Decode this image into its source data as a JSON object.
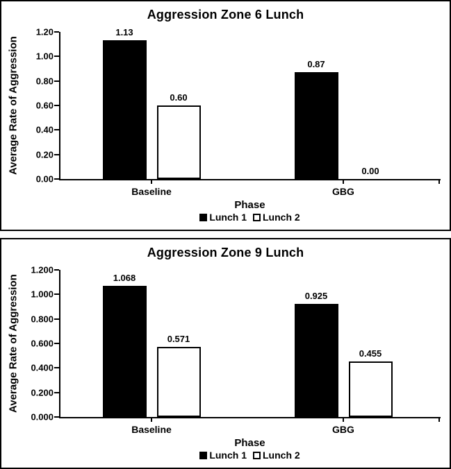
{
  "page": {
    "background": "#ffffff",
    "panel_border_color": "#000000",
    "series_colors": {
      "lunch1_fill": "#000000",
      "lunch2_fill": "#ffffff",
      "outline": "#000000"
    }
  },
  "chart_data": [
    {
      "type": "bar",
      "title": "Aggression Zone 6 Lunch",
      "xlabel": "Phase",
      "ylabel": "Average Rate of Aggression",
      "categories": [
        "Baseline",
        "GBG"
      ],
      "series": [
        {
          "name": "Lunch 1",
          "style": "filled",
          "fill": "#000000",
          "values": [
            1.13,
            0.87
          ],
          "labels": [
            "1.13",
            "0.87"
          ]
        },
        {
          "name": "Lunch 2",
          "style": "open",
          "fill": "#ffffff",
          "values": [
            0.6,
            0.0
          ],
          "labels": [
            "0.60",
            "0.00"
          ]
        }
      ],
      "ylim": [
        0,
        1.2
      ],
      "yticks": [
        "0.00",
        "0.20",
        "0.40",
        "0.60",
        "0.80",
        "1.00",
        "1.20"
      ],
      "grid": false,
      "legend_position": "bottom",
      "data_labels": true
    },
    {
      "type": "bar",
      "title": "Aggression Zone 9 Lunch",
      "xlabel": "Phase",
      "ylabel": "Average Rate of Aggression",
      "categories": [
        "Baseline",
        "GBG"
      ],
      "series": [
        {
          "name": "Lunch 1",
          "style": "filled",
          "fill": "#000000",
          "values": [
            1.068,
            0.925
          ],
          "labels": [
            "1.068",
            "0.925"
          ]
        },
        {
          "name": "Lunch 2",
          "style": "open",
          "fill": "#ffffff",
          "values": [
            0.571,
            0.455
          ],
          "labels": [
            "0.571",
            "0.455"
          ]
        }
      ],
      "ylim": [
        0,
        1.2
      ],
      "yticks": [
        "0.000",
        "0.200",
        "0.400",
        "0.600",
        "0.800",
        "1.000",
        "1.200"
      ],
      "grid": false,
      "legend_position": "bottom",
      "data_labels": true
    }
  ]
}
